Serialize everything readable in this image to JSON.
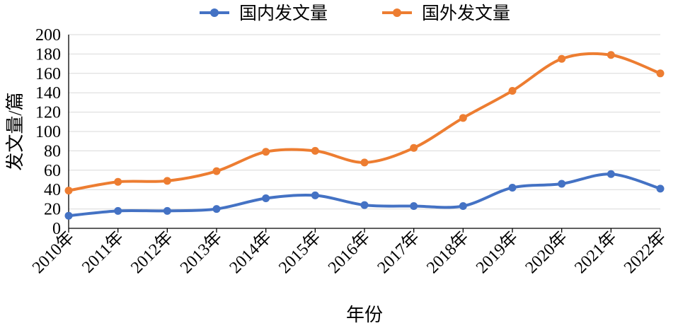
{
  "chart_data": {
    "type": "line",
    "categories": [
      "2010年",
      "2011年",
      "2012年",
      "2013年",
      "2014年",
      "2015年",
      "2016年",
      "2017年",
      "2018年",
      "2019年",
      "2020年",
      "2021年",
      "2022年"
    ],
    "series": [
      {
        "name": "国内发文量",
        "color": "#4472C4",
        "values": [
          13,
          18,
          18,
          20,
          31,
          34,
          24,
          23,
          23,
          42,
          46,
          56,
          41
        ]
      },
      {
        "name": "国外发文量",
        "color": "#ED7D31",
        "values": [
          39,
          48,
          49,
          59,
          79,
          80,
          68,
          83,
          114,
          142,
          175,
          179,
          160
        ]
      }
    ],
    "xlabel": "年份",
    "ylabel": "发文量/篇",
    "ylim": [
      0,
      200
    ],
    "yticks": [
      "0",
      "20",
      "40",
      "60",
      "80",
      "100",
      "120",
      "140",
      "160",
      "180",
      "200"
    ],
    "grid": true,
    "legend_position": "top-center"
  }
}
